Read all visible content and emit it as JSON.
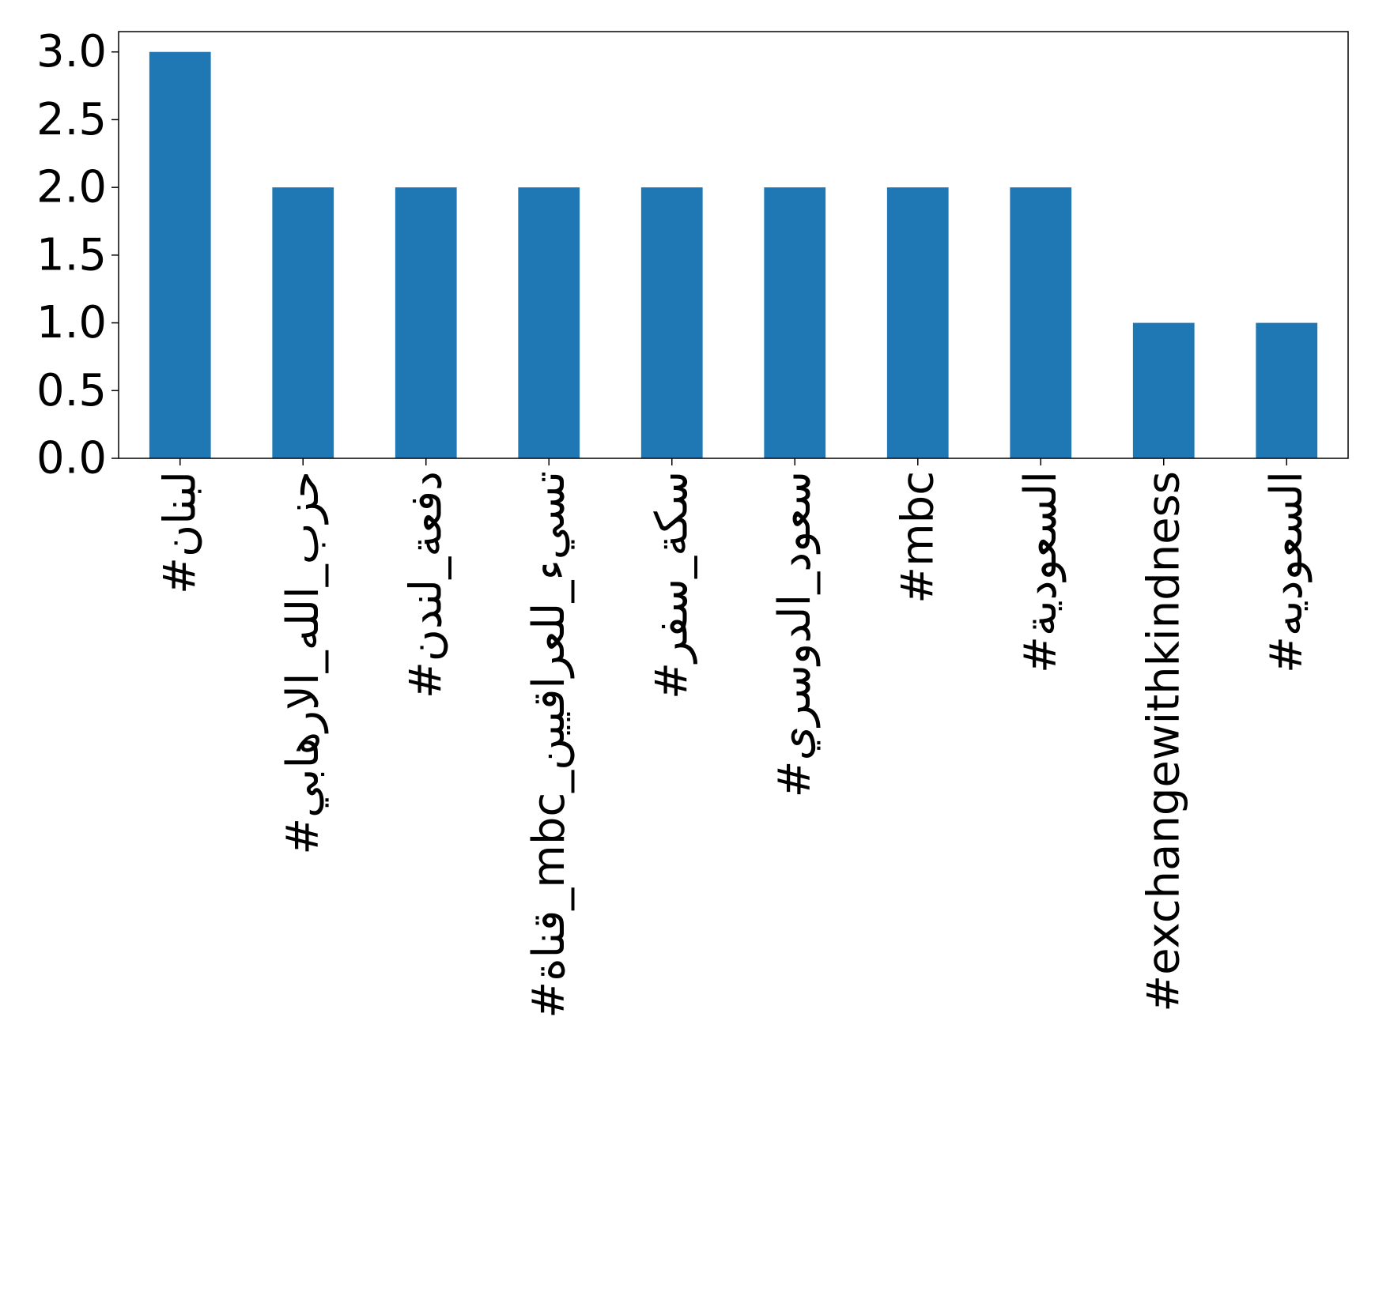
{
  "chart_data": {
    "type": "bar",
    "categories": [
      "#لبنان",
      "#حزب_الله_الارهابي",
      "#دفعة_لندن",
      "#قناة_mbc_تسيء_للعراقيين",
      "#سكة_سفر",
      "#سعود_الدوسري",
      "#mbc",
      "#السعودية",
      "#exchangewithkindness",
      "#السعوديه"
    ],
    "values": [
      3,
      2,
      2,
      2,
      2,
      2,
      2,
      2,
      1,
      1
    ],
    "ylim": [
      0,
      3.15
    ],
    "yticks": [
      0.0,
      0.5,
      1.0,
      1.5,
      2.0,
      2.5,
      3.0
    ],
    "ytick_labels": [
      "0.0",
      "0.5",
      "1.0",
      "1.5",
      "2.0",
      "2.5",
      "3.0"
    ],
    "bar_color": "#1f77b4",
    "grid": false,
    "title": "",
    "xlabel": "",
    "ylabel": ""
  }
}
